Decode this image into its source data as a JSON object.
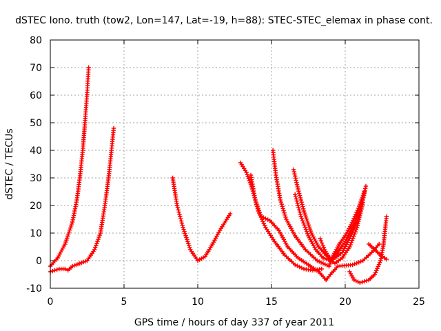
{
  "chart_data": {
    "type": "scatter",
    "title": "dSTEC Iono. truth (tow2, Lon=147, Lat=-19, h=88): STEC-STEC_elemax in phase cont.",
    "xlabel": "GPS time / hours of day 337 of year 2011",
    "ylabel": "dSTEC  / TECUs",
    "xlim": [
      0,
      25
    ],
    "ylim": [
      -10,
      80
    ],
    "xticks": [
      "0",
      "5",
      "10",
      "15",
      "20",
      "25"
    ],
    "yticks": [
      "-10",
      "0",
      "10",
      "20",
      "30",
      "40",
      "50",
      "60",
      "70",
      "80"
    ],
    "grid": true,
    "marker": "plus",
    "color": "#ff0000",
    "series": [
      {
        "points": [
          [
            0.0,
            -2
          ],
          [
            0.5,
            1
          ],
          [
            1.0,
            6
          ],
          [
            1.5,
            14
          ],
          [
            1.8,
            22
          ],
          [
            2.0,
            30
          ],
          [
            2.2,
            40
          ],
          [
            2.35,
            50
          ],
          [
            2.5,
            61
          ],
          [
            2.6,
            70
          ]
        ]
      },
      {
        "points": [
          [
            0.0,
            -4
          ],
          [
            0.3,
            -3.5
          ],
          [
            0.6,
            -3
          ],
          [
            1.0,
            -3
          ],
          [
            1.2,
            -3.5
          ],
          [
            1.5,
            -2
          ],
          [
            2.0,
            -1
          ],
          [
            2.5,
            0
          ],
          [
            3.0,
            4
          ],
          [
            3.4,
            10
          ],
          [
            3.7,
            20
          ],
          [
            3.95,
            30
          ],
          [
            4.15,
            40
          ],
          [
            4.3,
            48
          ]
        ]
      },
      {
        "points": [
          [
            8.3,
            30
          ],
          [
            8.6,
            20
          ],
          [
            9.0,
            12
          ],
          [
            9.5,
            4
          ],
          [
            10.0,
            0
          ],
          [
            10.5,
            1.5
          ],
          [
            11.0,
            6
          ],
          [
            11.5,
            11
          ],
          [
            12.2,
            17
          ]
        ]
      },
      {
        "points": [
          [
            12.9,
            35.5
          ],
          [
            13.3,
            32
          ],
          [
            13.7,
            26
          ],
          [
            14.1,
            18
          ],
          [
            14.6,
            12
          ],
          [
            15.2,
            7
          ],
          [
            15.9,
            2
          ],
          [
            16.6,
            -1.5
          ],
          [
            17.2,
            -3
          ],
          [
            17.8,
            -3.5
          ],
          [
            18.4,
            -3
          ]
        ]
      },
      {
        "points": [
          [
            13.6,
            31
          ],
          [
            13.9,
            22
          ],
          [
            14.3,
            16
          ],
          [
            14.9,
            14.5
          ],
          [
            15.5,
            11
          ],
          [
            16.1,
            5
          ],
          [
            16.8,
            1
          ],
          [
            17.5,
            -1.5
          ],
          [
            18.2,
            -4
          ],
          [
            18.7,
            -7
          ],
          [
            19.0,
            -5
          ],
          [
            19.5,
            -2
          ],
          [
            20.5,
            -1.5
          ],
          [
            21.2,
            0
          ],
          [
            21.8,
            3
          ],
          [
            22.3,
            6
          ]
        ]
      },
      {
        "points": [
          [
            15.1,
            40
          ],
          [
            15.3,
            31
          ],
          [
            15.6,
            22
          ],
          [
            16.0,
            15
          ],
          [
            16.6,
            9
          ],
          [
            17.3,
            4
          ],
          [
            18.1,
            0
          ],
          [
            18.9,
            -2
          ]
        ]
      },
      {
        "points": [
          [
            16.5,
            33
          ],
          [
            16.8,
            26
          ],
          [
            17.2,
            18
          ],
          [
            17.7,
            10
          ],
          [
            18.2,
            5
          ],
          [
            18.7,
            2
          ],
          [
            19.2,
            0.5
          ],
          [
            19.8,
            3
          ],
          [
            20.3,
            8
          ],
          [
            20.8,
            14
          ],
          [
            21.2,
            22
          ],
          [
            21.4,
            27
          ]
        ]
      },
      {
        "points": [
          [
            16.6,
            24
          ],
          [
            17.0,
            16
          ],
          [
            17.5,
            9
          ],
          [
            18.0,
            4
          ],
          [
            18.5,
            1
          ],
          [
            19.0,
            0
          ],
          [
            19.5,
            3
          ],
          [
            20.0,
            7
          ],
          [
            20.5,
            12
          ],
          [
            21.0,
            19
          ],
          [
            21.3,
            25
          ]
        ]
      },
      {
        "points": [
          [
            18.3,
            8
          ],
          [
            18.6,
            4
          ],
          [
            19.0,
            0
          ],
          [
            19.3,
            -1
          ],
          [
            19.8,
            1
          ],
          [
            20.3,
            5
          ],
          [
            20.8,
            12
          ],
          [
            21.2,
            21
          ]
        ]
      },
      {
        "points": [
          [
            18.9,
            -2
          ],
          [
            19.2,
            2
          ],
          [
            19.6,
            6
          ],
          [
            20.0,
            9
          ],
          [
            20.4,
            13
          ],
          [
            20.9,
            19
          ],
          [
            21.3,
            25
          ]
        ]
      },
      {
        "points": [
          [
            20.3,
            -4
          ],
          [
            20.6,
            -7
          ],
          [
            21.0,
            -8
          ],
          [
            21.6,
            -7
          ],
          [
            22.0,
            -5
          ],
          [
            22.4,
            0
          ],
          [
            22.6,
            6
          ],
          [
            22.8,
            16
          ]
        ]
      },
      {
        "points": [
          [
            21.6,
            6
          ],
          [
            22.0,
            4
          ],
          [
            22.4,
            2
          ],
          [
            22.8,
            0.5
          ]
        ]
      }
    ]
  }
}
